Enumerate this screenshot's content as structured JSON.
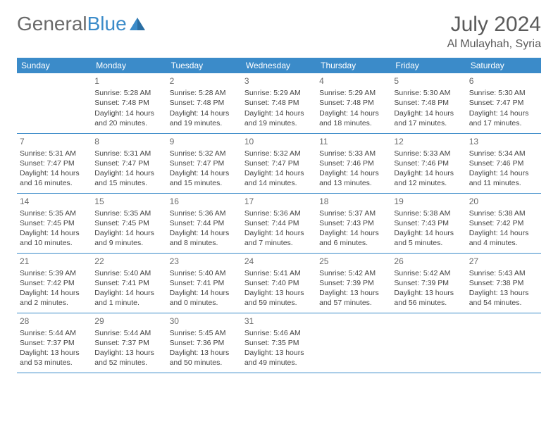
{
  "brand": {
    "part1": "General",
    "part2": "Blue"
  },
  "title": "July 2024",
  "location": "Al Mulayhah, Syria",
  "colors": {
    "header_bg": "#3b8bc9",
    "header_text": "#ffffff",
    "border": "#3b8bc9",
    "logo_gray": "#6a6a6a",
    "logo_blue": "#3b8bc9",
    "text": "#444444",
    "title_color": "#5a5a5a",
    "background": "#ffffff"
  },
  "typography": {
    "title_fontsize": 30,
    "location_fontsize": 16,
    "dayheader_fontsize": 12,
    "cell_fontsize": 10.5,
    "logo_fontsize": 28
  },
  "dayHeaders": [
    "Sunday",
    "Monday",
    "Tuesday",
    "Wednesday",
    "Thursday",
    "Friday",
    "Saturday"
  ],
  "weeks": [
    [
      null,
      {
        "n": "1",
        "sr": "5:28 AM",
        "ss": "7:48 PM",
        "dl": "14 hours and 20 minutes."
      },
      {
        "n": "2",
        "sr": "5:28 AM",
        "ss": "7:48 PM",
        "dl": "14 hours and 19 minutes."
      },
      {
        "n": "3",
        "sr": "5:29 AM",
        "ss": "7:48 PM",
        "dl": "14 hours and 19 minutes."
      },
      {
        "n": "4",
        "sr": "5:29 AM",
        "ss": "7:48 PM",
        "dl": "14 hours and 18 minutes."
      },
      {
        "n": "5",
        "sr": "5:30 AM",
        "ss": "7:48 PM",
        "dl": "14 hours and 17 minutes."
      },
      {
        "n": "6",
        "sr": "5:30 AM",
        "ss": "7:47 PM",
        "dl": "14 hours and 17 minutes."
      }
    ],
    [
      {
        "n": "7",
        "sr": "5:31 AM",
        "ss": "7:47 PM",
        "dl": "14 hours and 16 minutes."
      },
      {
        "n": "8",
        "sr": "5:31 AM",
        "ss": "7:47 PM",
        "dl": "14 hours and 15 minutes."
      },
      {
        "n": "9",
        "sr": "5:32 AM",
        "ss": "7:47 PM",
        "dl": "14 hours and 15 minutes."
      },
      {
        "n": "10",
        "sr": "5:32 AM",
        "ss": "7:47 PM",
        "dl": "14 hours and 14 minutes."
      },
      {
        "n": "11",
        "sr": "5:33 AM",
        "ss": "7:46 PM",
        "dl": "14 hours and 13 minutes."
      },
      {
        "n": "12",
        "sr": "5:33 AM",
        "ss": "7:46 PM",
        "dl": "14 hours and 12 minutes."
      },
      {
        "n": "13",
        "sr": "5:34 AM",
        "ss": "7:46 PM",
        "dl": "14 hours and 11 minutes."
      }
    ],
    [
      {
        "n": "14",
        "sr": "5:35 AM",
        "ss": "7:45 PM",
        "dl": "14 hours and 10 minutes."
      },
      {
        "n": "15",
        "sr": "5:35 AM",
        "ss": "7:45 PM",
        "dl": "14 hours and 9 minutes."
      },
      {
        "n": "16",
        "sr": "5:36 AM",
        "ss": "7:44 PM",
        "dl": "14 hours and 8 minutes."
      },
      {
        "n": "17",
        "sr": "5:36 AM",
        "ss": "7:44 PM",
        "dl": "14 hours and 7 minutes."
      },
      {
        "n": "18",
        "sr": "5:37 AM",
        "ss": "7:43 PM",
        "dl": "14 hours and 6 minutes."
      },
      {
        "n": "19",
        "sr": "5:38 AM",
        "ss": "7:43 PM",
        "dl": "14 hours and 5 minutes."
      },
      {
        "n": "20",
        "sr": "5:38 AM",
        "ss": "7:42 PM",
        "dl": "14 hours and 4 minutes."
      }
    ],
    [
      {
        "n": "21",
        "sr": "5:39 AM",
        "ss": "7:42 PM",
        "dl": "14 hours and 2 minutes."
      },
      {
        "n": "22",
        "sr": "5:40 AM",
        "ss": "7:41 PM",
        "dl": "14 hours and 1 minute."
      },
      {
        "n": "23",
        "sr": "5:40 AM",
        "ss": "7:41 PM",
        "dl": "14 hours and 0 minutes."
      },
      {
        "n": "24",
        "sr": "5:41 AM",
        "ss": "7:40 PM",
        "dl": "13 hours and 59 minutes."
      },
      {
        "n": "25",
        "sr": "5:42 AM",
        "ss": "7:39 PM",
        "dl": "13 hours and 57 minutes."
      },
      {
        "n": "26",
        "sr": "5:42 AM",
        "ss": "7:39 PM",
        "dl": "13 hours and 56 minutes."
      },
      {
        "n": "27",
        "sr": "5:43 AM",
        "ss": "7:38 PM",
        "dl": "13 hours and 54 minutes."
      }
    ],
    [
      {
        "n": "28",
        "sr": "5:44 AM",
        "ss": "7:37 PM",
        "dl": "13 hours and 53 minutes."
      },
      {
        "n": "29",
        "sr": "5:44 AM",
        "ss": "7:37 PM",
        "dl": "13 hours and 52 minutes."
      },
      {
        "n": "30",
        "sr": "5:45 AM",
        "ss": "7:36 PM",
        "dl": "13 hours and 50 minutes."
      },
      {
        "n": "31",
        "sr": "5:46 AM",
        "ss": "7:35 PM",
        "dl": "13 hours and 49 minutes."
      },
      null,
      null,
      null
    ]
  ],
  "labels": {
    "sunrise": "Sunrise:",
    "sunset": "Sunset:",
    "daylight": "Daylight:"
  }
}
